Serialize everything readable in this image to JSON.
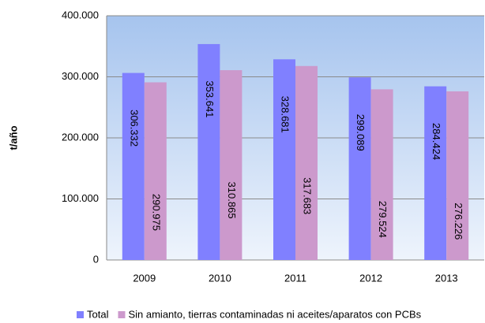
{
  "chart_data": {
    "type": "bar",
    "y_label": "t/año",
    "categories": [
      "2009",
      "2010",
      "2011",
      "2012",
      "2013"
    ],
    "series": [
      {
        "name": "Total",
        "color": "#8080ff",
        "values": [
          306332,
          353641,
          328681,
          299089,
          284424
        ],
        "value_labels": [
          "306.332",
          "353.641",
          "328.681",
          "299.089",
          "284.424"
        ]
      },
      {
        "name": "Sin amianto, tierras contaminadas ni aceites/aparatos con PCBs",
        "color": "#cc99cc",
        "values": [
          290975,
          310865,
          317683,
          279524,
          276226
        ],
        "value_labels": [
          "290.975",
          "310.865",
          "317.683",
          "279.524",
          "276.226"
        ]
      }
    ],
    "ylim": [
      0,
      400000
    ],
    "yticks": [
      0,
      {
        "value": 100000,
        "label": "100.000"
      },
      {
        "value": 200000,
        "label": "200.000"
      },
      {
        "value": 300000,
        "label": "300.000"
      },
      {
        "value": 400000,
        "label": "400.000"
      }
    ],
    "grid": true,
    "legend": "bottom"
  }
}
